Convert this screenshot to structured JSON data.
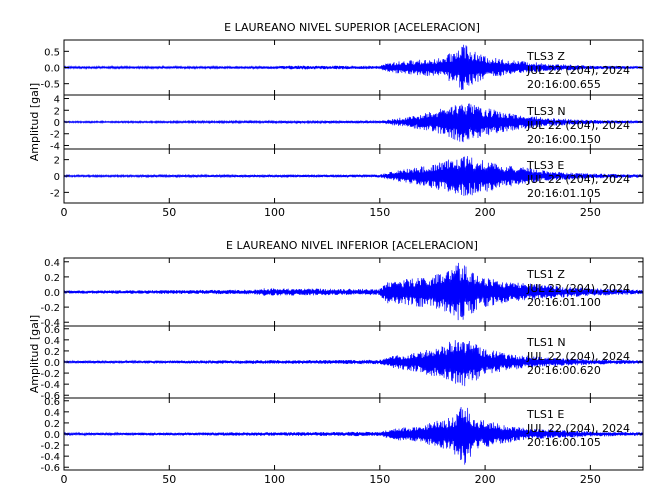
{
  "chart_data": [
    {
      "type": "line",
      "title": "E LAUREANO NIVEL SUPERIOR [ACELERACION]",
      "ylabel": "Amplitud [gal]",
      "xlabel": "",
      "xlim": [
        0,
        275
      ],
      "x_ticks": [
        "0",
        "50",
        "100",
        "150",
        "200",
        "250"
      ],
      "line_color": "#0000ff",
      "grid": false,
      "panels": [
        {
          "component": "Z",
          "station_label": "TLS3   Z",
          "date_label": "JUL 22 (204), 2024",
          "time_label": "20:16:00.655",
          "ylim": [
            -0.85,
            0.85
          ],
          "y_ticks": [
            0.5,
            0.0,
            -0.5
          ],
          "y_tick_labels": [
            "0.5",
            "0.0",
            "-0.5"
          ],
          "envelope": [
            [
              0,
              0.03
            ],
            [
              100,
              0.04
            ],
            [
              108,
              0.06
            ],
            [
              150,
              0.05
            ],
            [
              153,
              0.14
            ],
            [
              160,
              0.2
            ],
            [
              180,
              0.3
            ],
            [
              187,
              0.6
            ],
            [
              190,
              0.85
            ],
            [
              193,
              0.55
            ],
            [
              200,
              0.35
            ],
            [
              210,
              0.25
            ],
            [
              230,
              0.12
            ],
            [
              250,
              0.06
            ],
            [
              275,
              0.04
            ]
          ]
        },
        {
          "component": "N",
          "station_label": "TLS3   N",
          "date_label": "JUL 22 (204), 2024",
          "time_label": "20:16:00.150",
          "ylim": [
            -4.6,
            4.6
          ],
          "y_ticks": [
            4,
            2,
            0,
            -2,
            -4
          ],
          "y_tick_labels": [
            "4",
            "2",
            "0",
            "-2",
            "-4"
          ],
          "envelope": [
            [
              0,
              0.12
            ],
            [
              150,
              0.2
            ],
            [
              155,
              0.5
            ],
            [
              165,
              1.0
            ],
            [
              175,
              1.8
            ],
            [
              185,
              3.0
            ],
            [
              190,
              3.6
            ],
            [
              200,
              2.5
            ],
            [
              210,
              1.6
            ],
            [
              230,
              0.7
            ],
            [
              250,
              0.35
            ],
            [
              275,
              0.2
            ]
          ]
        },
        {
          "component": "E",
          "station_label": "TLS3   E",
          "date_label": "JUL 22 (204), 2024",
          "time_label": "20:16:01.105",
          "ylim": [
            -3.3,
            3.3
          ],
          "y_ticks": [
            2,
            0,
            -2
          ],
          "y_tick_labels": [
            "2",
            "0",
            "-2"
          ],
          "envelope": [
            [
              0,
              0.1
            ],
            [
              150,
              0.18
            ],
            [
              155,
              0.5
            ],
            [
              170,
              1.2
            ],
            [
              185,
              2.2
            ],
            [
              190,
              2.6
            ],
            [
              200,
              2.0
            ],
            [
              210,
              1.4
            ],
            [
              230,
              0.6
            ],
            [
              250,
              0.3
            ],
            [
              275,
              0.2
            ]
          ]
        }
      ]
    },
    {
      "type": "line",
      "title": "E LAUREANO NIVEL INFERIOR [ACELERACION]",
      "ylabel": "Amplitud [gal]",
      "xlabel": "",
      "xlim": [
        0,
        275
      ],
      "x_ticks": [
        "0",
        "50",
        "100",
        "150",
        "200",
        "250"
      ],
      "line_color": "#0000ff",
      "grid": false,
      "panels": [
        {
          "component": "Z",
          "station_label": "TLS1   Z",
          "date_label": "JUL 22 (204), 2024",
          "time_label": "20:16:01.100",
          "ylim": [
            -0.45,
            0.45
          ],
          "y_ticks": [
            0.4,
            0.2,
            0.0,
            -0.2,
            -0.4
          ],
          "y_tick_labels": [
            "0.4",
            "0.2",
            "0.0",
            "-0.2",
            "-0.4"
          ],
          "envelope": [
            [
              0,
              0.02
            ],
            [
              90,
              0.03
            ],
            [
              95,
              0.05
            ],
            [
              150,
              0.04
            ],
            [
              153,
              0.15
            ],
            [
              165,
              0.18
            ],
            [
              180,
              0.25
            ],
            [
              188,
              0.4
            ],
            [
              193,
              0.3
            ],
            [
              200,
              0.2
            ],
            [
              210,
              0.14
            ],
            [
              230,
              0.09
            ],
            [
              250,
              0.05
            ],
            [
              275,
              0.03
            ]
          ]
        },
        {
          "component": "N",
          "station_label": "TLS1   N",
          "date_label": "JUL 22 (204), 2024",
          "time_label": "20:16:00.620",
          "ylim": [
            -0.65,
            0.65
          ],
          "y_ticks": [
            0.6,
            0.4,
            0.2,
            0.0,
            -0.2,
            -0.4,
            -0.6
          ],
          "y_tick_labels": [
            "0.6",
            "0.4",
            "0.2",
            "0.0",
            "-0.2",
            "-0.4",
            "-0.6"
          ],
          "envelope": [
            [
              0,
              0.02
            ],
            [
              150,
              0.04
            ],
            [
              155,
              0.1
            ],
            [
              170,
              0.2
            ],
            [
              185,
              0.4
            ],
            [
              190,
              0.45
            ],
            [
              200,
              0.25
            ],
            [
              210,
              0.15
            ],
            [
              230,
              0.08
            ],
            [
              250,
              0.05
            ],
            [
              275,
              0.03
            ]
          ]
        },
        {
          "component": "E",
          "station_label": "TLS1   E",
          "date_label": "JUL 22 (204), 2024",
          "time_label": "20:16:00.105",
          "ylim": [
            -0.65,
            0.65
          ],
          "y_ticks": [
            0.6,
            0.4,
            0.2,
            0.0,
            -0.2,
            -0.4,
            -0.6
          ],
          "y_tick_labels": [
            "0.6",
            "0.4",
            "0.2",
            "0.0",
            "-0.2",
            "-0.4",
            "-0.6"
          ],
          "envelope": [
            [
              0,
              0.02
            ],
            [
              150,
              0.04
            ],
            [
              155,
              0.1
            ],
            [
              170,
              0.15
            ],
            [
              185,
              0.35
            ],
            [
              190,
              0.6
            ],
            [
              195,
              0.3
            ],
            [
              205,
              0.2
            ],
            [
              220,
              0.1
            ],
            [
              250,
              0.05
            ],
            [
              275,
              0.03
            ]
          ]
        }
      ]
    }
  ]
}
